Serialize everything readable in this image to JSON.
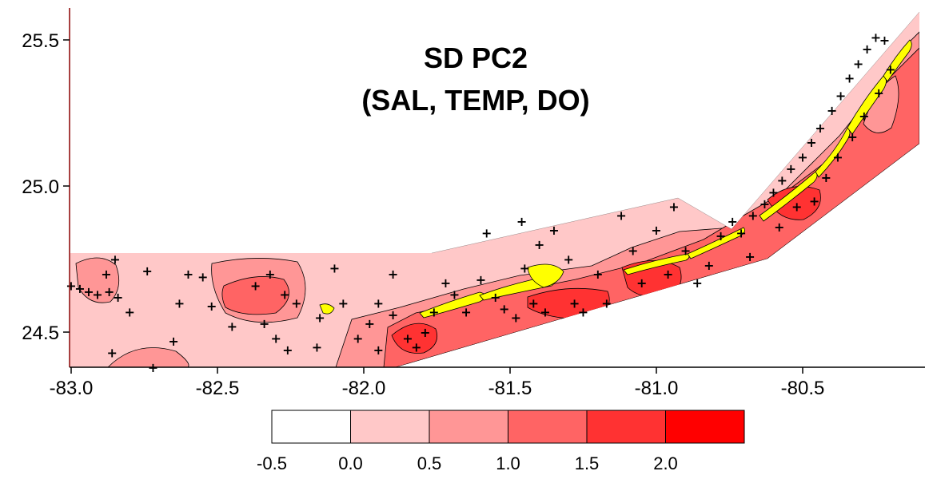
{
  "chart_data": {
    "type": "heatmap",
    "title": [
      "SD PC2",
      "(SAL, TEMP, DO)"
    ],
    "xlabel": "",
    "ylabel": "",
    "xlim": [
      -83.0,
      -80.15
    ],
    "ylim": [
      24.38,
      25.6
    ],
    "x_ticks": [
      "-83.0",
      "-82.5",
      "-82.0",
      "-81.5",
      "-81.0",
      "-80.5"
    ],
    "x_tick_values": [
      -83.0,
      -82.5,
      -82.0,
      -81.5,
      -81.0,
      -80.5
    ],
    "y_ticks": [
      "25.5",
      "25.0",
      "24.5"
    ],
    "y_tick_values": [
      25.5,
      25.0,
      24.5
    ],
    "legend": {
      "placement": "bottom",
      "boundaries": [
        "-0.5",
        "0.0",
        "0.5",
        "1.0",
        "1.5",
        "2.0"
      ],
      "bins": [
        {
          "range": "-0.5 to 0.0",
          "color": "#ffffff"
        },
        {
          "range": "0.0 to 0.5",
          "color": "#ffc8c8"
        },
        {
          "range": "0.5 to 1.0",
          "color": "#ff9696"
        },
        {
          "range": "1.0 to 1.5",
          "color": "#ff6464"
        },
        {
          "range": "1.5 to 2.0",
          "color": "#ff3232"
        },
        {
          "range": "2.0+",
          "color": "#ff0000"
        }
      ]
    },
    "land_color": "#ffff00",
    "station_marker": "+",
    "stations": [
      [
        -83.0,
        24.66
      ],
      [
        -82.97,
        24.65
      ],
      [
        -82.94,
        24.64
      ],
      [
        -82.91,
        24.63
      ],
      [
        -82.88,
        24.7
      ],
      [
        -82.85,
        24.75
      ],
      [
        -82.87,
        24.64
      ],
      [
        -82.84,
        24.62
      ],
      [
        -82.74,
        24.71
      ],
      [
        -82.8,
        24.57
      ],
      [
        -82.63,
        24.6
      ],
      [
        -82.65,
        24.47
      ],
      [
        -82.86,
        24.43
      ],
      [
        -82.72,
        24.38
      ],
      [
        -82.6,
        24.7
      ],
      [
        -82.52,
        24.59
      ],
      [
        -82.45,
        24.52
      ],
      [
        -82.37,
        24.66
      ],
      [
        -82.34,
        24.53
      ],
      [
        -82.3,
        24.48
      ],
      [
        -82.27,
        24.63
      ],
      [
        -82.23,
        24.6
      ],
      [
        -82.26,
        24.44
      ],
      [
        -82.15,
        24.55
      ],
      [
        -82.16,
        24.45
      ],
      [
        -82.07,
        24.6
      ],
      [
        -82.02,
        24.48
      ],
      [
        -81.98,
        24.53
      ],
      [
        -81.95,
        24.44
      ],
      [
        -81.9,
        24.56
      ],
      [
        -81.85,
        24.48
      ],
      [
        -81.82,
        24.45
      ],
      [
        -81.79,
        24.5
      ],
      [
        -81.76,
        24.57
      ],
      [
        -81.72,
        24.67
      ],
      [
        -81.69,
        24.63
      ],
      [
        -81.65,
        24.57
      ],
      [
        -81.6,
        24.68
      ],
      [
        -81.55,
        24.62
      ],
      [
        -81.52,
        24.58
      ],
      [
        -81.48,
        24.55
      ],
      [
        -81.45,
        24.72
      ],
      [
        -81.42,
        24.6
      ],
      [
        -81.38,
        24.57
      ],
      [
        -81.35,
        24.85
      ],
      [
        -81.3,
        24.75
      ],
      [
        -81.28,
        24.6
      ],
      [
        -81.25,
        24.57
      ],
      [
        -81.2,
        24.7
      ],
      [
        -81.17,
        24.6
      ],
      [
        -81.12,
        24.9
      ],
      [
        -81.08,
        24.78
      ],
      [
        -81.05,
        24.67
      ],
      [
        -81.0,
        24.85
      ],
      [
        -80.96,
        24.7
      ],
      [
        -80.94,
        24.93
      ],
      [
        -80.9,
        24.78
      ],
      [
        -80.86,
        24.67
      ],
      [
        -80.82,
        24.73
      ],
      [
        -80.78,
        24.83
      ],
      [
        -80.74,
        24.88
      ],
      [
        -80.71,
        24.84
      ],
      [
        -80.67,
        24.9
      ],
      [
        -80.63,
        24.94
      ],
      [
        -80.6,
        24.98
      ],
      [
        -80.57,
        25.02
      ],
      [
        -80.54,
        25.06
      ],
      [
        -80.5,
        25.1
      ],
      [
        -80.47,
        25.15
      ],
      [
        -80.44,
        25.2
      ],
      [
        -80.4,
        25.26
      ],
      [
        -80.37,
        25.31
      ],
      [
        -80.34,
        25.37
      ],
      [
        -80.31,
        25.42
      ],
      [
        -80.28,
        25.47
      ],
      [
        -80.25,
        25.51
      ],
      [
        -80.22,
        25.5
      ],
      [
        -80.46,
        24.95
      ],
      [
        -80.42,
        25.03
      ],
      [
        -80.38,
        25.1
      ],
      [
        -80.33,
        25.17
      ],
      [
        -80.29,
        25.24
      ],
      [
        -80.24,
        25.32
      ],
      [
        -80.2,
        25.4
      ],
      [
        -80.68,
        24.76
      ],
      [
        -80.58,
        24.86
      ],
      [
        -80.52,
        24.93
      ],
      [
        -81.58,
        24.84
      ],
      [
        -81.46,
        24.88
      ],
      [
        -81.4,
        24.8
      ],
      [
        -81.9,
        24.7
      ],
      [
        -81.95,
        24.6
      ],
      [
        -82.1,
        24.72
      ],
      [
        -82.32,
        24.7
      ],
      [
        -82.55,
        24.69
      ]
    ]
  }
}
